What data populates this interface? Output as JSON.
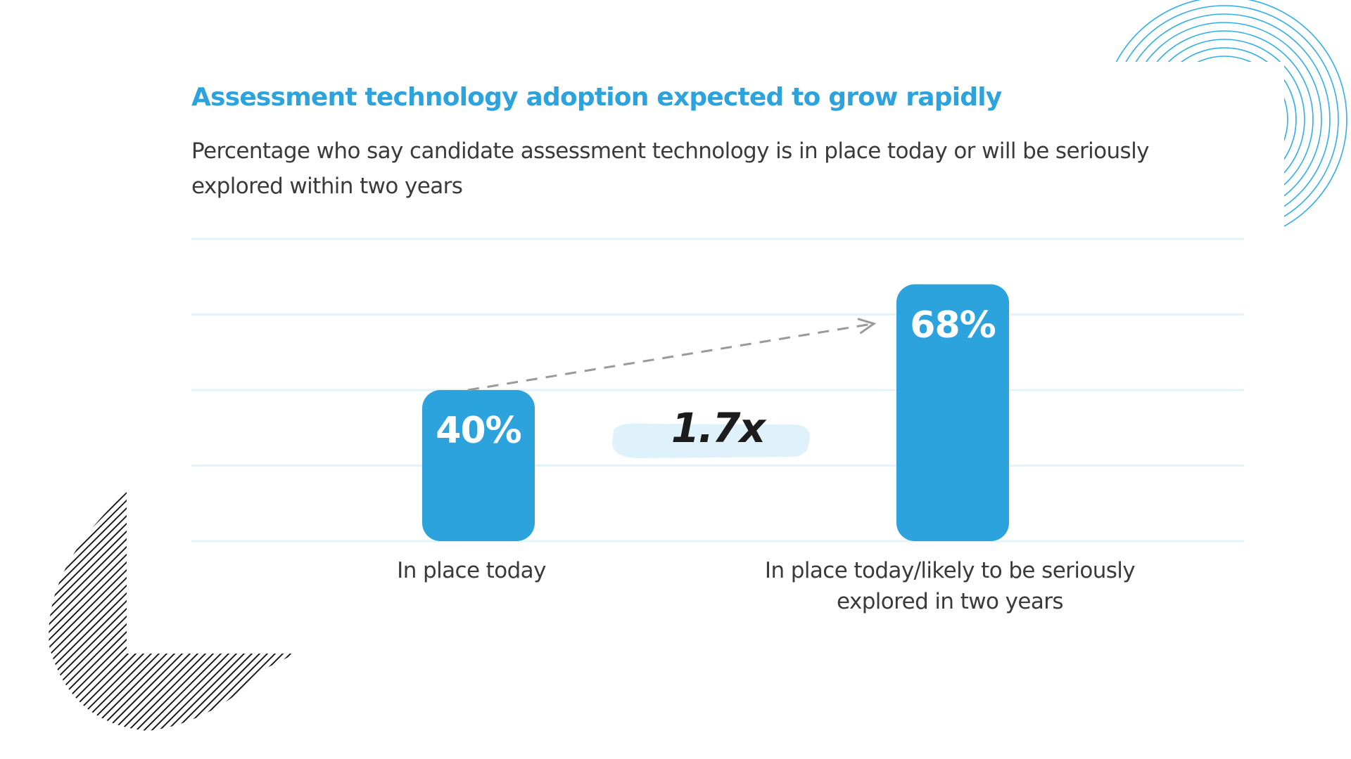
{
  "title": "Assessment technology adoption expected to grow rapidly",
  "subtitle": "Percentage who say candidate assessment technology is in place today or will be seriously explored within two years",
  "annotation": "1.7x",
  "colors": {
    "title": "#2ca3dd",
    "bar": "#2ca3dd",
    "grid": "#e3f3fb",
    "annotation_highlight": "#dff1fb",
    "deco_circles": "#1aa6e4",
    "deco_stripes": "#1a1a1a"
  },
  "chart_data": {
    "type": "bar",
    "categories": [
      "In place today",
      "In place today/likely to be seriously explored in two years"
    ],
    "values": [
      40,
      68
    ],
    "value_labels": [
      "40%",
      "68%"
    ],
    "ylim": [
      0,
      80
    ],
    "grid": true,
    "xlabel": "",
    "ylabel": ""
  }
}
